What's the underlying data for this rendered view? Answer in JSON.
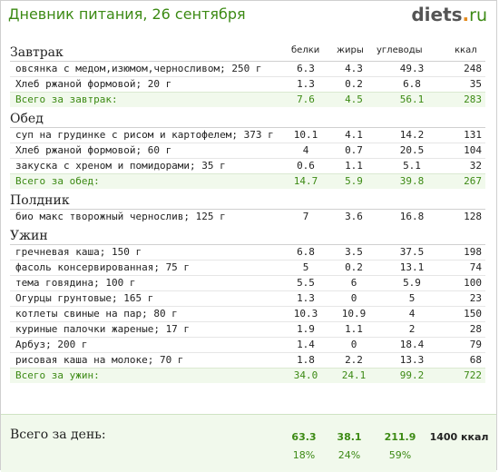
{
  "header": {
    "title": "Дневник питания, 26 сентября",
    "logo": {
      "name": "diets",
      "dot": ".",
      "tld": "ru"
    }
  },
  "columns": {
    "protein": "белки",
    "fat": "жиры",
    "carbs": "углеводы",
    "kcal": "ккал"
  },
  "meals": [
    {
      "title": "Завтрак",
      "items": [
        {
          "name": "овсянка с медом,изюмом,черносливом; 250 г",
          "protein": "6.3",
          "fat": "4.3",
          "carbs": "49.3",
          "kcal": "248"
        },
        {
          "name": "Хлеб ржаной формовой; 20 г",
          "protein": "1.3",
          "fat": "0.2",
          "carbs": "6.8",
          "kcal": "35"
        }
      ],
      "total": {
        "label": "Всего за завтрак:",
        "protein": "7.6",
        "fat": "4.5",
        "carbs": "56.1",
        "kcal": "283"
      }
    },
    {
      "title": "Обед",
      "items": [
        {
          "name": "суп на грудинке с рисом и картофелем; 373 г",
          "protein": "10.1",
          "fat": "4.1",
          "carbs": "14.2",
          "kcal": "131"
        },
        {
          "name": "Хлеб ржаной формовой; 60 г",
          "protein": "4",
          "fat": "0.7",
          "carbs": "20.5",
          "kcal": "104"
        },
        {
          "name": "закуска с хреном и помидорами; 35 г",
          "protein": "0.6",
          "fat": "1.1",
          "carbs": "5.1",
          "kcal": "32"
        }
      ],
      "total": {
        "label": "Всего за обед:",
        "protein": "14.7",
        "fat": "5.9",
        "carbs": "39.8",
        "kcal": "267"
      }
    },
    {
      "title": "Полдник",
      "items": [
        {
          "name": "био макс творожный чернослив; 125 г",
          "protein": "7",
          "fat": "3.6",
          "carbs": "16.8",
          "kcal": "128"
        }
      ],
      "total": null
    },
    {
      "title": "Ужин",
      "items": [
        {
          "name": "гречневая каша; 150 г",
          "protein": "6.8",
          "fat": "3.5",
          "carbs": "37.5",
          "kcal": "198"
        },
        {
          "name": "фасоль консервированная; 75 г",
          "protein": "5",
          "fat": "0.2",
          "carbs": "13.1",
          "kcal": "74"
        },
        {
          "name": "тема говядина; 100 г",
          "protein": "5.5",
          "fat": "6",
          "carbs": "5.9",
          "kcal": "100"
        },
        {
          "name": "Огурцы грунтовые; 165 г",
          "protein": "1.3",
          "fat": "0",
          "carbs": "5",
          "kcal": "23"
        },
        {
          "name": "котлеты свиные на пар; 80 г",
          "protein": "10.3",
          "fat": "10.9",
          "carbs": "4",
          "kcal": "150"
        },
        {
          "name": "куриные палочки жареные; 17 г",
          "protein": "1.9",
          "fat": "1.1",
          "carbs": "2",
          "kcal": "28"
        },
        {
          "name": "Арбуз; 200 г",
          "protein": "1.4",
          "fat": "0",
          "carbs": "18.4",
          "kcal": "79"
        },
        {
          "name": "рисовая каша на молоке; 70 г",
          "protein": "1.8",
          "fat": "2.2",
          "carbs": "13.3",
          "kcal": "68"
        }
      ],
      "total": {
        "label": "Всего за ужин:",
        "protein": "34.0",
        "fat": "24.1",
        "carbs": "99.2",
        "kcal": "722"
      }
    }
  ],
  "day_total": {
    "label": "Всего за день:",
    "protein": "63.3",
    "fat": "38.1",
    "carbs": "211.9",
    "kcal": "1400 ккал",
    "protein_pct": "18%",
    "fat_pct": "24%",
    "carbs_pct": "59%"
  }
}
